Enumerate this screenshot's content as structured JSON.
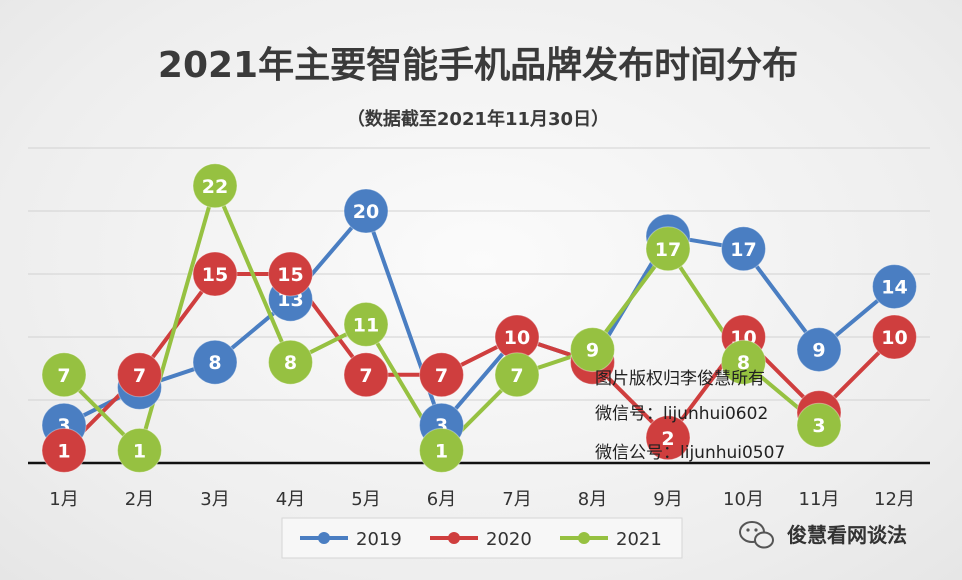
{
  "chart_data": {
    "type": "line",
    "title": "2021年主要智能手机品牌发布时间分布",
    "subtitle": "（数据截至2021年11月30日）",
    "categories": [
      "1月",
      "2月",
      "3月",
      "4月",
      "5月",
      "6月",
      "7月",
      "8月",
      "9月",
      "10月",
      "11月",
      "12月"
    ],
    "ylim": [
      0,
      25
    ],
    "grid": true,
    "legend": "bottom",
    "series": [
      {
        "name": "2019",
        "color": "#4a7ec2",
        "values": [
          3,
          6,
          8,
          13,
          20,
          3,
          10,
          8,
          18,
          17,
          9,
          14
        ]
      },
      {
        "name": "2020",
        "color": "#cf3e3e",
        "values": [
          1,
          7,
          15,
          15,
          7,
          7,
          10,
          8,
          2,
          10,
          4,
          10
        ]
      },
      {
        "name": "2021",
        "color": "#96c141",
        "values": [
          7,
          1,
          22,
          8,
          11,
          1,
          7,
          9,
          17,
          8,
          3,
          null
        ]
      }
    ]
  },
  "watermark": {
    "line1": "图片版权归李俊慧所有",
    "line2": "微信号：lijunhui0602",
    "line3": "微信公号：lijunhui0507"
  },
  "brand": {
    "name": "俊慧看网谈法",
    "icon": "wechat-icon"
  }
}
